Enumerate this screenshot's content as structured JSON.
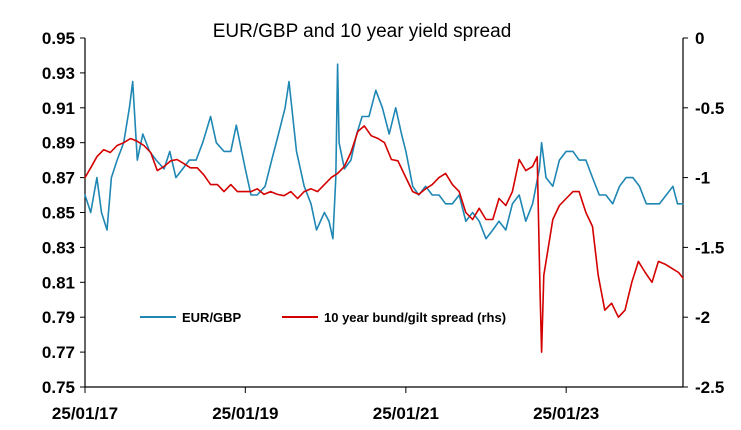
{
  "chart_data": {
    "type": "line",
    "title": "EUR/GBP and 10 year yield spread",
    "x_tick_labels": [
      "25/01/17",
      "25/01/19",
      "25/01/21",
      "25/01/23"
    ],
    "x_range": [
      "2017-01-25",
      "2024-07-10"
    ],
    "x_ticks": [
      "2017-01-25",
      "2019-01-25",
      "2021-01-25",
      "2023-01-25"
    ],
    "y_left": {
      "range": [
        0.75,
        0.95
      ],
      "ticks": [
        0.75,
        0.77,
        0.79,
        0.81,
        0.83,
        0.85,
        0.87,
        0.89,
        0.91,
        0.93,
        0.95
      ],
      "tick_labels": [
        "0.75",
        "0.77",
        "0.79",
        "0.81",
        "0.83",
        "0.85",
        "0.87",
        "0.89",
        "0.91",
        "0.93",
        "0.95"
      ]
    },
    "y_right": {
      "range": [
        -2.5,
        0
      ],
      "ticks": [
        0,
        -0.5,
        -1,
        -1.5,
        -2,
        -2.5
      ],
      "tick_labels": [
        "0",
        "-0.5",
        "-1",
        "-1.5",
        "-2",
        "-2.5"
      ]
    },
    "grid": false,
    "legend_position": "bottom-left inside plot",
    "series": [
      {
        "name": "EUR/GBP",
        "axis": "left",
        "color": "#1f87b4",
        "points": [
          [
            "2017-01-25",
            0.86
          ],
          [
            "2017-02-20",
            0.85
          ],
          [
            "2017-03-20",
            0.87
          ],
          [
            "2017-04-10",
            0.85
          ],
          [
            "2017-05-05",
            0.84
          ],
          [
            "2017-05-25",
            0.87
          ],
          [
            "2017-06-20",
            0.88
          ],
          [
            "2017-07-20",
            0.89
          ],
          [
            "2017-08-15",
            0.91
          ],
          [
            "2017-08-30",
            0.925
          ],
          [
            "2017-09-20",
            0.88
          ],
          [
            "2017-10-15",
            0.895
          ],
          [
            "2017-11-15",
            0.885
          ],
          [
            "2017-12-15",
            0.88
          ],
          [
            "2018-01-20",
            0.875
          ],
          [
            "2018-02-15",
            0.885
          ],
          [
            "2018-03-15",
            0.87
          ],
          [
            "2018-04-15",
            0.875
          ],
          [
            "2018-05-15",
            0.88
          ],
          [
            "2018-06-15",
            0.88
          ],
          [
            "2018-07-15",
            0.89
          ],
          [
            "2018-08-20",
            0.905
          ],
          [
            "2018-09-15",
            0.89
          ],
          [
            "2018-10-20",
            0.885
          ],
          [
            "2018-11-20",
            0.885
          ],
          [
            "2018-12-15",
            0.9
          ],
          [
            "2019-01-25",
            0.875
          ],
          [
            "2019-02-20",
            0.86
          ],
          [
            "2019-03-20",
            0.86
          ],
          [
            "2019-04-25",
            0.865
          ],
          [
            "2019-05-25",
            0.88
          ],
          [
            "2019-06-25",
            0.895
          ],
          [
            "2019-07-25",
            0.91
          ],
          [
            "2019-08-12",
            0.925
          ],
          [
            "2019-09-15",
            0.885
          ],
          [
            "2019-10-20",
            0.865
          ],
          [
            "2019-11-20",
            0.855
          ],
          [
            "2019-12-15",
            0.84
          ],
          [
            "2020-01-20",
            0.85
          ],
          [
            "2020-02-10",
            0.845
          ],
          [
            "2020-02-28",
            0.835
          ],
          [
            "2020-03-12",
            0.87
          ],
          [
            "2020-03-20",
            0.935
          ],
          [
            "2020-03-27",
            0.89
          ],
          [
            "2020-04-20",
            0.875
          ],
          [
            "2020-05-20",
            0.88
          ],
          [
            "2020-06-15",
            0.895
          ],
          [
            "2020-07-10",
            0.905
          ],
          [
            "2020-08-10",
            0.905
          ],
          [
            "2020-09-10",
            0.92
          ],
          [
            "2020-10-10",
            0.91
          ],
          [
            "2020-11-10",
            0.895
          ],
          [
            "2020-12-10",
            0.91
          ],
          [
            "2021-01-05",
            0.895
          ],
          [
            "2021-01-25",
            0.885
          ],
          [
            "2021-02-25",
            0.865
          ],
          [
            "2021-03-25",
            0.86
          ],
          [
            "2021-04-25",
            0.865
          ],
          [
            "2021-05-25",
            0.86
          ],
          [
            "2021-06-25",
            0.86
          ],
          [
            "2021-07-25",
            0.855
          ],
          [
            "2021-08-25",
            0.855
          ],
          [
            "2021-09-25",
            0.86
          ],
          [
            "2021-10-25",
            0.845
          ],
          [
            "2021-11-25",
            0.85
          ],
          [
            "2021-12-25",
            0.845
          ],
          [
            "2022-01-25",
            0.835
          ],
          [
            "2022-02-25",
            0.84
          ],
          [
            "2022-03-25",
            0.845
          ],
          [
            "2022-04-25",
            0.84
          ],
          [
            "2022-05-25",
            0.855
          ],
          [
            "2022-06-25",
            0.86
          ],
          [
            "2022-07-25",
            0.845
          ],
          [
            "2022-08-25",
            0.855
          ],
          [
            "2022-09-25",
            0.875
          ],
          [
            "2022-10-05",
            0.89
          ],
          [
            "2022-10-25",
            0.87
          ],
          [
            "2022-11-25",
            0.865
          ],
          [
            "2022-12-25",
            0.88
          ],
          [
            "2023-01-25",
            0.885
          ],
          [
            "2023-02-25",
            0.885
          ],
          [
            "2023-03-25",
            0.88
          ],
          [
            "2023-04-25",
            0.88
          ],
          [
            "2023-05-25",
            0.87
          ],
          [
            "2023-06-25",
            0.86
          ],
          [
            "2023-07-25",
            0.86
          ],
          [
            "2023-08-25",
            0.855
          ],
          [
            "2023-09-25",
            0.865
          ],
          [
            "2023-10-25",
            0.87
          ],
          [
            "2023-11-25",
            0.87
          ],
          [
            "2023-12-25",
            0.865
          ],
          [
            "2024-01-25",
            0.855
          ],
          [
            "2024-02-25",
            0.855
          ],
          [
            "2024-03-25",
            0.855
          ],
          [
            "2024-04-25",
            0.86
          ],
          [
            "2024-05-25",
            0.865
          ],
          [
            "2024-06-15",
            0.855
          ],
          [
            "2024-07-10",
            0.855
          ]
        ]
      },
      {
        "name": "10 year bund/gilt spread (rhs)",
        "axis": "right",
        "color": "#d40000",
        "points": [
          [
            "2017-01-25",
            -1.0
          ],
          [
            "2017-02-20",
            -0.93
          ],
          [
            "2017-03-20",
            -0.85
          ],
          [
            "2017-04-20",
            -0.8
          ],
          [
            "2017-05-20",
            -0.82
          ],
          [
            "2017-06-20",
            -0.77
          ],
          [
            "2017-07-20",
            -0.75
          ],
          [
            "2017-08-20",
            -0.72
          ],
          [
            "2017-09-20",
            -0.74
          ],
          [
            "2017-10-20",
            -0.77
          ],
          [
            "2017-11-20",
            -0.82
          ],
          [
            "2017-12-20",
            -0.95
          ],
          [
            "2018-01-20",
            -0.92
          ],
          [
            "2018-02-20",
            -0.88
          ],
          [
            "2018-03-20",
            -0.87
          ],
          [
            "2018-04-20",
            -0.9
          ],
          [
            "2018-05-20",
            -0.93
          ],
          [
            "2018-06-20",
            -0.93
          ],
          [
            "2018-07-20",
            -0.98
          ],
          [
            "2018-08-20",
            -1.05
          ],
          [
            "2018-09-20",
            -1.05
          ],
          [
            "2018-10-20",
            -1.1
          ],
          [
            "2018-11-20",
            -1.05
          ],
          [
            "2018-12-20",
            -1.1
          ],
          [
            "2019-01-25",
            -1.1
          ],
          [
            "2019-02-20",
            -1.1
          ],
          [
            "2019-03-20",
            -1.08
          ],
          [
            "2019-04-20",
            -1.12
          ],
          [
            "2019-05-20",
            -1.1
          ],
          [
            "2019-06-20",
            -1.12
          ],
          [
            "2019-07-20",
            -1.13
          ],
          [
            "2019-08-20",
            -1.1
          ],
          [
            "2019-09-20",
            -1.15
          ],
          [
            "2019-10-20",
            -1.1
          ],
          [
            "2019-11-20",
            -1.08
          ],
          [
            "2019-12-20",
            -1.1
          ],
          [
            "2020-01-20",
            -1.05
          ],
          [
            "2020-02-20",
            -1.0
          ],
          [
            "2020-03-20",
            -0.97
          ],
          [
            "2020-04-20",
            -0.92
          ],
          [
            "2020-05-20",
            -0.82
          ],
          [
            "2020-06-20",
            -0.67
          ],
          [
            "2020-07-20",
            -0.63
          ],
          [
            "2020-08-20",
            -0.7
          ],
          [
            "2020-09-20",
            -0.72
          ],
          [
            "2020-10-20",
            -0.75
          ],
          [
            "2020-11-20",
            -0.87
          ],
          [
            "2020-12-20",
            -0.88
          ],
          [
            "2021-01-25",
            -1.0
          ],
          [
            "2021-02-25",
            -1.1
          ],
          [
            "2021-03-25",
            -1.12
          ],
          [
            "2021-04-25",
            -1.08
          ],
          [
            "2021-05-25",
            -1.05
          ],
          [
            "2021-06-25",
            -1.0
          ],
          [
            "2021-07-25",
            -0.97
          ],
          [
            "2021-08-25",
            -1.05
          ],
          [
            "2021-09-25",
            -1.1
          ],
          [
            "2021-10-25",
            -1.25
          ],
          [
            "2021-11-25",
            -1.3
          ],
          [
            "2021-12-25",
            -1.22
          ],
          [
            "2022-01-25",
            -1.3
          ],
          [
            "2022-02-25",
            -1.3
          ],
          [
            "2022-03-25",
            -1.15
          ],
          [
            "2022-04-25",
            -1.2
          ],
          [
            "2022-05-25",
            -1.1
          ],
          [
            "2022-06-25",
            -0.87
          ],
          [
            "2022-07-25",
            -0.95
          ],
          [
            "2022-08-25",
            -0.92
          ],
          [
            "2022-09-15",
            -0.85
          ],
          [
            "2022-09-28",
            -1.8
          ],
          [
            "2022-10-05",
            -2.25
          ],
          [
            "2022-10-15",
            -1.7
          ],
          [
            "2022-11-25",
            -1.3
          ],
          [
            "2022-12-25",
            -1.2
          ],
          [
            "2023-01-25",
            -1.15
          ],
          [
            "2023-02-25",
            -1.1
          ],
          [
            "2023-03-25",
            -1.1
          ],
          [
            "2023-04-25",
            -1.25
          ],
          [
            "2023-05-25",
            -1.35
          ],
          [
            "2023-06-20",
            -1.7
          ],
          [
            "2023-07-20",
            -1.95
          ],
          [
            "2023-08-20",
            -1.9
          ],
          [
            "2023-09-20",
            -2.0
          ],
          [
            "2023-10-20",
            -1.95
          ],
          [
            "2023-11-20",
            -1.75
          ],
          [
            "2023-12-20",
            -1.6
          ],
          [
            "2024-01-20",
            -1.68
          ],
          [
            "2024-02-20",
            -1.75
          ],
          [
            "2024-03-20",
            -1.6
          ],
          [
            "2024-04-20",
            -1.62
          ],
          [
            "2024-05-20",
            -1.65
          ],
          [
            "2024-06-20",
            -1.68
          ],
          [
            "2024-07-10",
            -1.72
          ]
        ]
      }
    ]
  }
}
